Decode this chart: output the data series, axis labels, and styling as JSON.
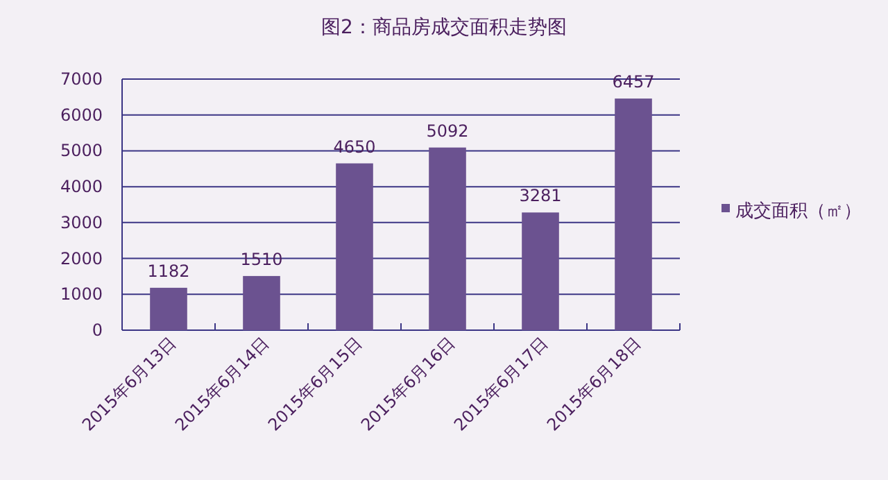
{
  "chart_data": {
    "type": "bar",
    "title": "图2：商品房成交面积走势图",
    "categories": [
      "2015年6月13日",
      "2015年6月14日",
      "2015年6月15日",
      "2015年6月16日",
      "2015年6月17日",
      "2015年6月18日"
    ],
    "series": [
      {
        "name": "成交面积（㎡）",
        "color": "#6b5290",
        "values": [
          1182,
          1510,
          4650,
          5092,
          3281,
          6457
        ]
      }
    ],
    "ylim": [
      0,
      7000
    ],
    "yticks": [
      0,
      1000,
      2000,
      3000,
      4000,
      5000,
      6000,
      7000
    ],
    "grid": "y",
    "legend": "right",
    "data_labels": true
  }
}
